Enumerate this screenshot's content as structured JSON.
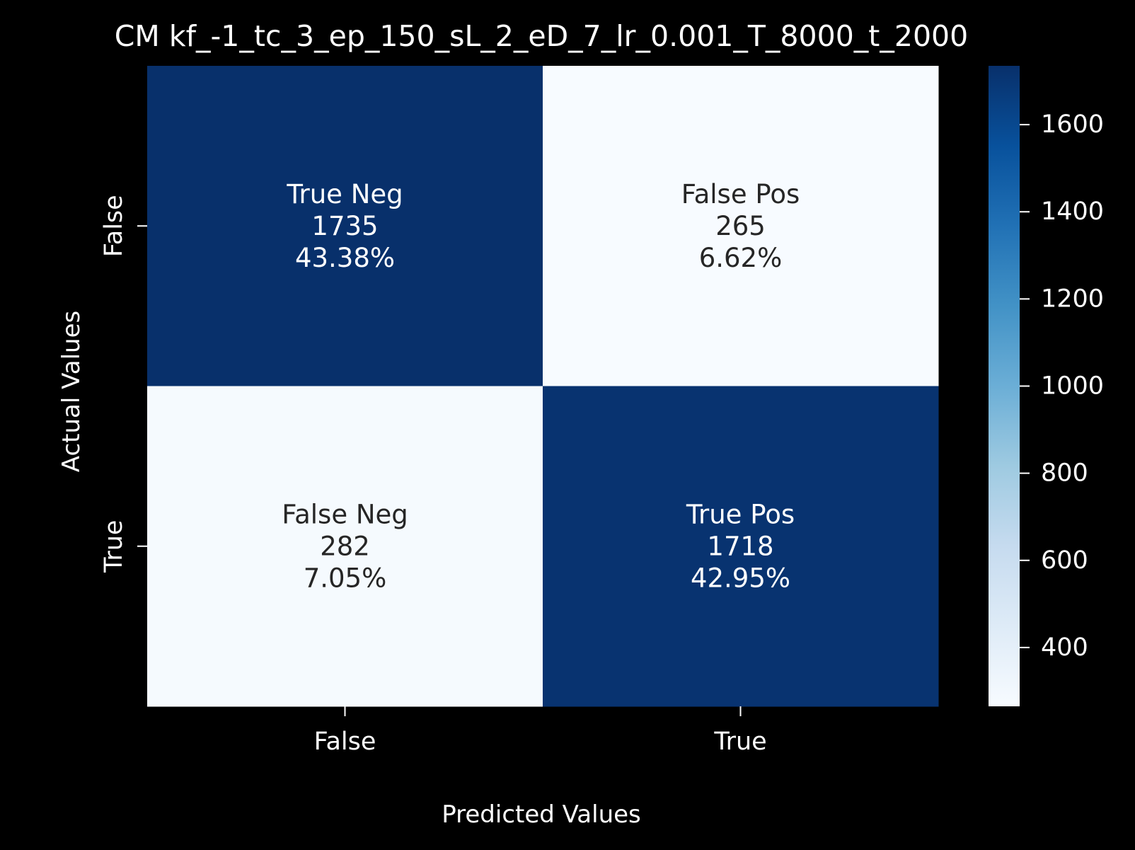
{
  "chart_data": {
    "type": "heatmap",
    "title": "CM kf_-1_tc_3_ep_150_sL_2_eD_7_lr_0.001_T_8000_t_2000",
    "xlabel": "Predicted Values",
    "ylabel": "Actual Values",
    "x_categories": [
      "False",
      "True"
    ],
    "y_categories": [
      "False",
      "True"
    ],
    "cells": [
      {
        "row": 0,
        "col": 0,
        "label": "True Neg",
        "count": "1735",
        "value": 1735,
        "percent": "43.38%"
      },
      {
        "row": 0,
        "col": 1,
        "label": "False Pos",
        "count": "265",
        "value": 265,
        "percent": "6.62%"
      },
      {
        "row": 1,
        "col": 0,
        "label": "False Neg",
        "count": "282",
        "value": 282,
        "percent": "7.05%"
      },
      {
        "row": 1,
        "col": 1,
        "label": "True Pos",
        "count": "1718",
        "value": 1718,
        "percent": "42.95%"
      }
    ],
    "colormap": "Blues",
    "colorbar": {
      "vmin": 265,
      "vmax": 1735,
      "ticks": [
        "400",
        "600",
        "800",
        "1000",
        "1200",
        "1400",
        "1600"
      ]
    },
    "colors": {
      "background": "#000000",
      "text_light": "#ffffff",
      "text_dark": "#262626"
    }
  }
}
